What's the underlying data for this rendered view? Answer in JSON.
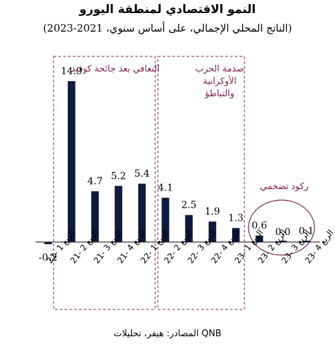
{
  "header": {
    "title": "النمو الاقتصادي لمنطقة اليورو",
    "subtitle": "(الناتج المحلي الإجمالي، على أساس سنوي، 2021-2023)"
  },
  "footer": {
    "source": "المصادر: هيفر، تحليلات QNB"
  },
  "colors": {
    "bar": "#0f1a3c",
    "annotation": "#7b2450",
    "axis": "#000000"
  },
  "chart_data": {
    "type": "bar",
    "categories": [
      "الربع 1 -21",
      "الربع 2 -21",
      "الربع 3 -21",
      "الربع 4 -21",
      "الربع 1 -22",
      "الربع 2 -22",
      "الربع 3 -22",
      "الربع 4 -22",
      "الربع 1 -23",
      "الربع 2 -23",
      "الربع 3 -23",
      "الربع 4 -23"
    ],
    "values": [
      -0.2,
      14.9,
      4.7,
      5.2,
      5.4,
      4.1,
      2.5,
      1.9,
      1.3,
      0.6,
      0.0,
      0.1
    ],
    "value_labels": [
      "-0.2",
      "14.9",
      "4.7",
      "5.2",
      "5.4",
      "4.1",
      "2.5",
      "1.9",
      "1.3",
      "0.6",
      "0.0",
      "0.1"
    ],
    "ylim": [
      -0.2,
      14.9
    ],
    "annotations": {
      "recovery": "التعافي بعد جائحة كوفيد",
      "war_shock": [
        "صدمة الحرب",
        "الأوكرانية",
        "والتباطؤ"
      ],
      "stagflation": "ركود تضخمي"
    }
  }
}
